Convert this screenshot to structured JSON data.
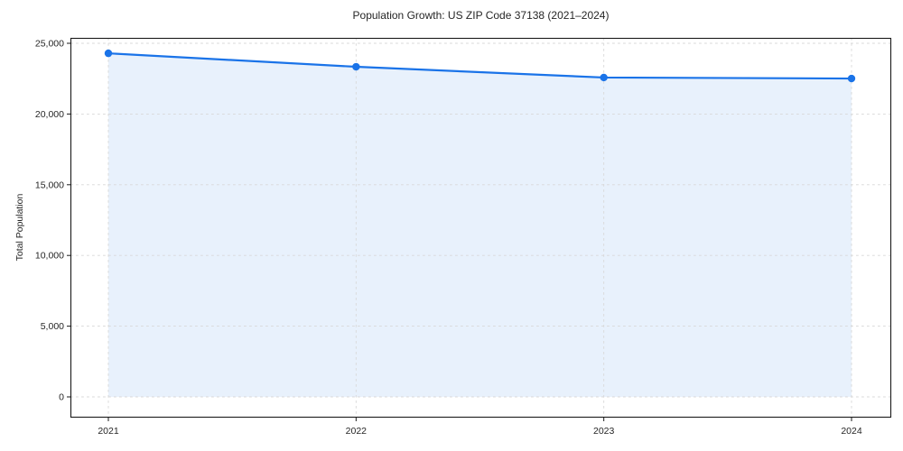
{
  "chart_data": {
    "type": "area",
    "title": "Population Growth: US ZIP Code 37138 (2021–2024)",
    "xlabel": "",
    "ylabel": "Total Population",
    "categories": [
      "2021",
      "2022",
      "2023",
      "2024"
    ],
    "series": [
      {
        "name": "Total Population",
        "values": [
          24290,
          23340,
          22580,
          22510
        ]
      }
    ],
    "values": [
      24290,
      23340,
      22580,
      22510
    ],
    "ylim": [
      0,
      25000
    ],
    "y_ticks": [
      0,
      5000,
      10000,
      15000,
      20000,
      25000
    ],
    "y_tick_labels": [
      "0",
      "5,000",
      "10,000",
      "15,000",
      "20,000",
      "25,000"
    ],
    "grid": true,
    "grid_style": "dashed",
    "legend": false,
    "marker": "circle",
    "colors": {
      "line": "#1a73e8",
      "area_fill": "#e8f1fc",
      "grid": "#d8d8d8",
      "axis": "#1a1a1a",
      "background": "#ffffff",
      "text": "#262626"
    }
  }
}
